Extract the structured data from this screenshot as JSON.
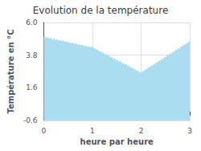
{
  "chart_data": {
    "type": "area",
    "title": "Evolution de la température",
    "xlabel": "heure par heure",
    "ylabel": "Température en °C",
    "x": [
      0,
      1,
      2,
      3
    ],
    "values": [
      5.0,
      4.3,
      2.6,
      4.7
    ],
    "xlim": [
      0,
      3
    ],
    "ylim": [
      -0.6,
      6.0
    ],
    "xticks": [
      0,
      1,
      2,
      3
    ],
    "yticks": [
      -0.6,
      1.6,
      3.8,
      {
        "value": 6.0,
        "label": "6.0"
      }
    ],
    "grid": true,
    "line_style": "dotted",
    "color": "#aaddf0"
  }
}
